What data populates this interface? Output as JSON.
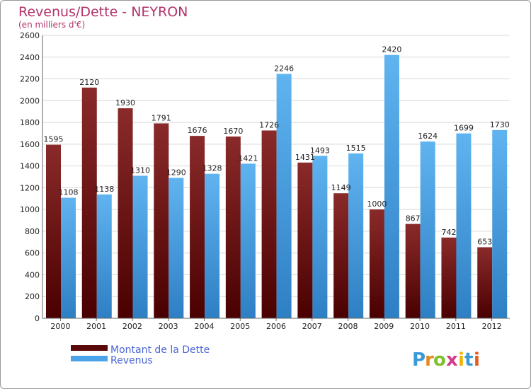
{
  "chart_data": {
    "type": "bar",
    "title": "Revenus/Dette - NEYRON",
    "subtitle": "(en milliers d'€)",
    "categories": [
      "2000",
      "2001",
      "2002",
      "2003",
      "2004",
      "2005",
      "2006",
      "2007",
      "2008",
      "2009",
      "2010",
      "2011",
      "2012"
    ],
    "series": [
      {
        "name": "Montant de la Dette",
        "color": "#7a1515",
        "values": [
          1595,
          2120,
          1930,
          1791,
          1676,
          1670,
          1726,
          1431,
          1149,
          1000,
          867,
          742,
          653
        ]
      },
      {
        "name": "Revenus",
        "color": "#4aa3e8",
        "values": [
          1108,
          1138,
          1310,
          1290,
          1328,
          1421,
          2246,
          1493,
          1515,
          2420,
          1624,
          1699,
          1730
        ]
      }
    ],
    "ylim": [
      0,
      2600
    ],
    "ytick_step": 200,
    "grid": true,
    "xlabel": "",
    "ylabel": "",
    "legend_position": "bottom-left"
  },
  "logo": {
    "text": "Proxiti"
  }
}
